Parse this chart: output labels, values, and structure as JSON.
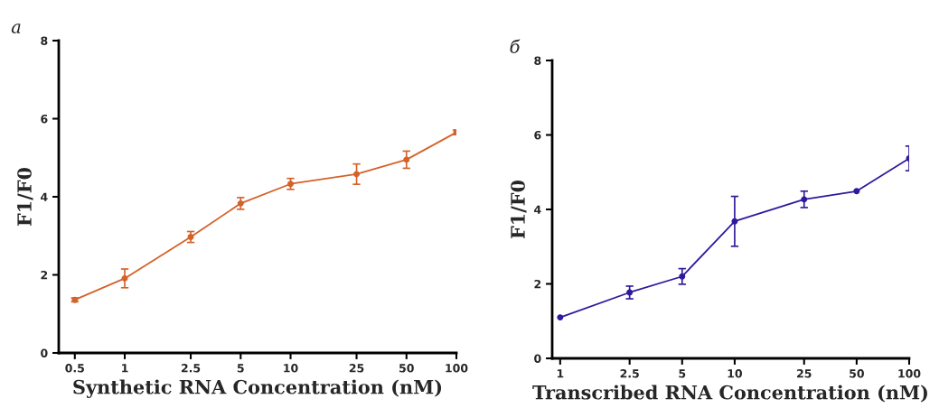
{
  "chart_data": [
    {
      "type": "line",
      "title": "а",
      "xlabel": "Synthetic RNA Concentration (nM)",
      "ylabel": "F1/F0",
      "log": "x",
      "x": [
        0.5,
        1,
        2.5,
        5,
        10,
        25,
        50,
        100
      ],
      "series": [
        {
          "color": "#d4622a",
          "values": [
            1.36,
            1.91,
            2.97,
            3.83,
            4.33,
            4.58,
            4.95,
            5.65
          ],
          "errors": [
            0.05,
            0.24,
            0.14,
            0.15,
            0.14,
            0.26,
            0.22,
            0.06
          ]
        }
      ],
      "xlim": [
        0.4,
        100
      ],
      "xticks": [
        0.5,
        1,
        2.5,
        5,
        10,
        25,
        50,
        100
      ],
      "ylim": [
        0,
        8
      ],
      "yticks": [
        0,
        2,
        4,
        6,
        8
      ],
      "marker": "circle"
    },
    {
      "type": "line",
      "title": "б",
      "xlabel": "Transcribed RNA Concentration (nM)",
      "ylabel": "F1/F0",
      "log": "x",
      "x": [
        1,
        2.5,
        5,
        10,
        25,
        50,
        100
      ],
      "series": [
        {
          "color": "#2e1a9e",
          "values": [
            1.1,
            1.77,
            2.2,
            3.68,
            4.27,
            4.49,
            5.37
          ],
          "errors": [
            null,
            0.17,
            0.21,
            0.67,
            0.22,
            null,
            0.33
          ]
        }
      ],
      "xlim": [
        0.9,
        100
      ],
      "xticks": [
        1,
        2.5,
        5,
        10,
        25,
        50,
        100
      ],
      "ylim": [
        0,
        8
      ],
      "yticks": [
        0,
        2,
        4,
        6,
        8
      ],
      "marker": "circle"
    }
  ]
}
